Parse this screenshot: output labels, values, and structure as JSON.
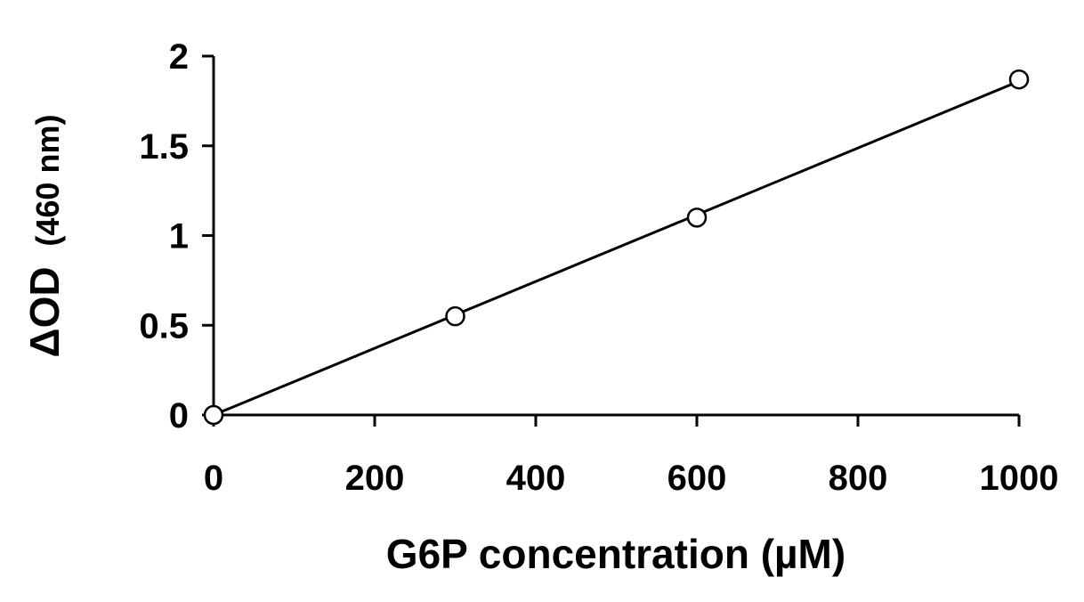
{
  "chart_data": {
    "type": "scatter",
    "title": "",
    "xlabel": "G6P concentration (µM)",
    "ylabel_main": "ΔOD",
    "ylabel_unit": "(460 nm)",
    "xlim": [
      0,
      1000
    ],
    "ylim": [
      0,
      2
    ],
    "xticks": [
      "0",
      "200",
      "400",
      "600",
      "800",
      "1000"
    ],
    "yticks": [
      "0",
      "0.5",
      "1",
      "1.5",
      "2"
    ],
    "grid": false,
    "legend": "none",
    "marker": "open-circle",
    "trendline": "linear",
    "series": [
      {
        "x": [
          0,
          300,
          600,
          1000
        ],
        "y": [
          0,
          0.55,
          1.1,
          1.87
        ]
      }
    ],
    "fit_line": {
      "x": [
        0,
        1000
      ],
      "y": [
        0,
        1.86
      ]
    },
    "colors": {
      "axis": "#000000",
      "line": "#000000",
      "marker_fill": "#ffffff",
      "marker_stroke": "#000000"
    }
  }
}
